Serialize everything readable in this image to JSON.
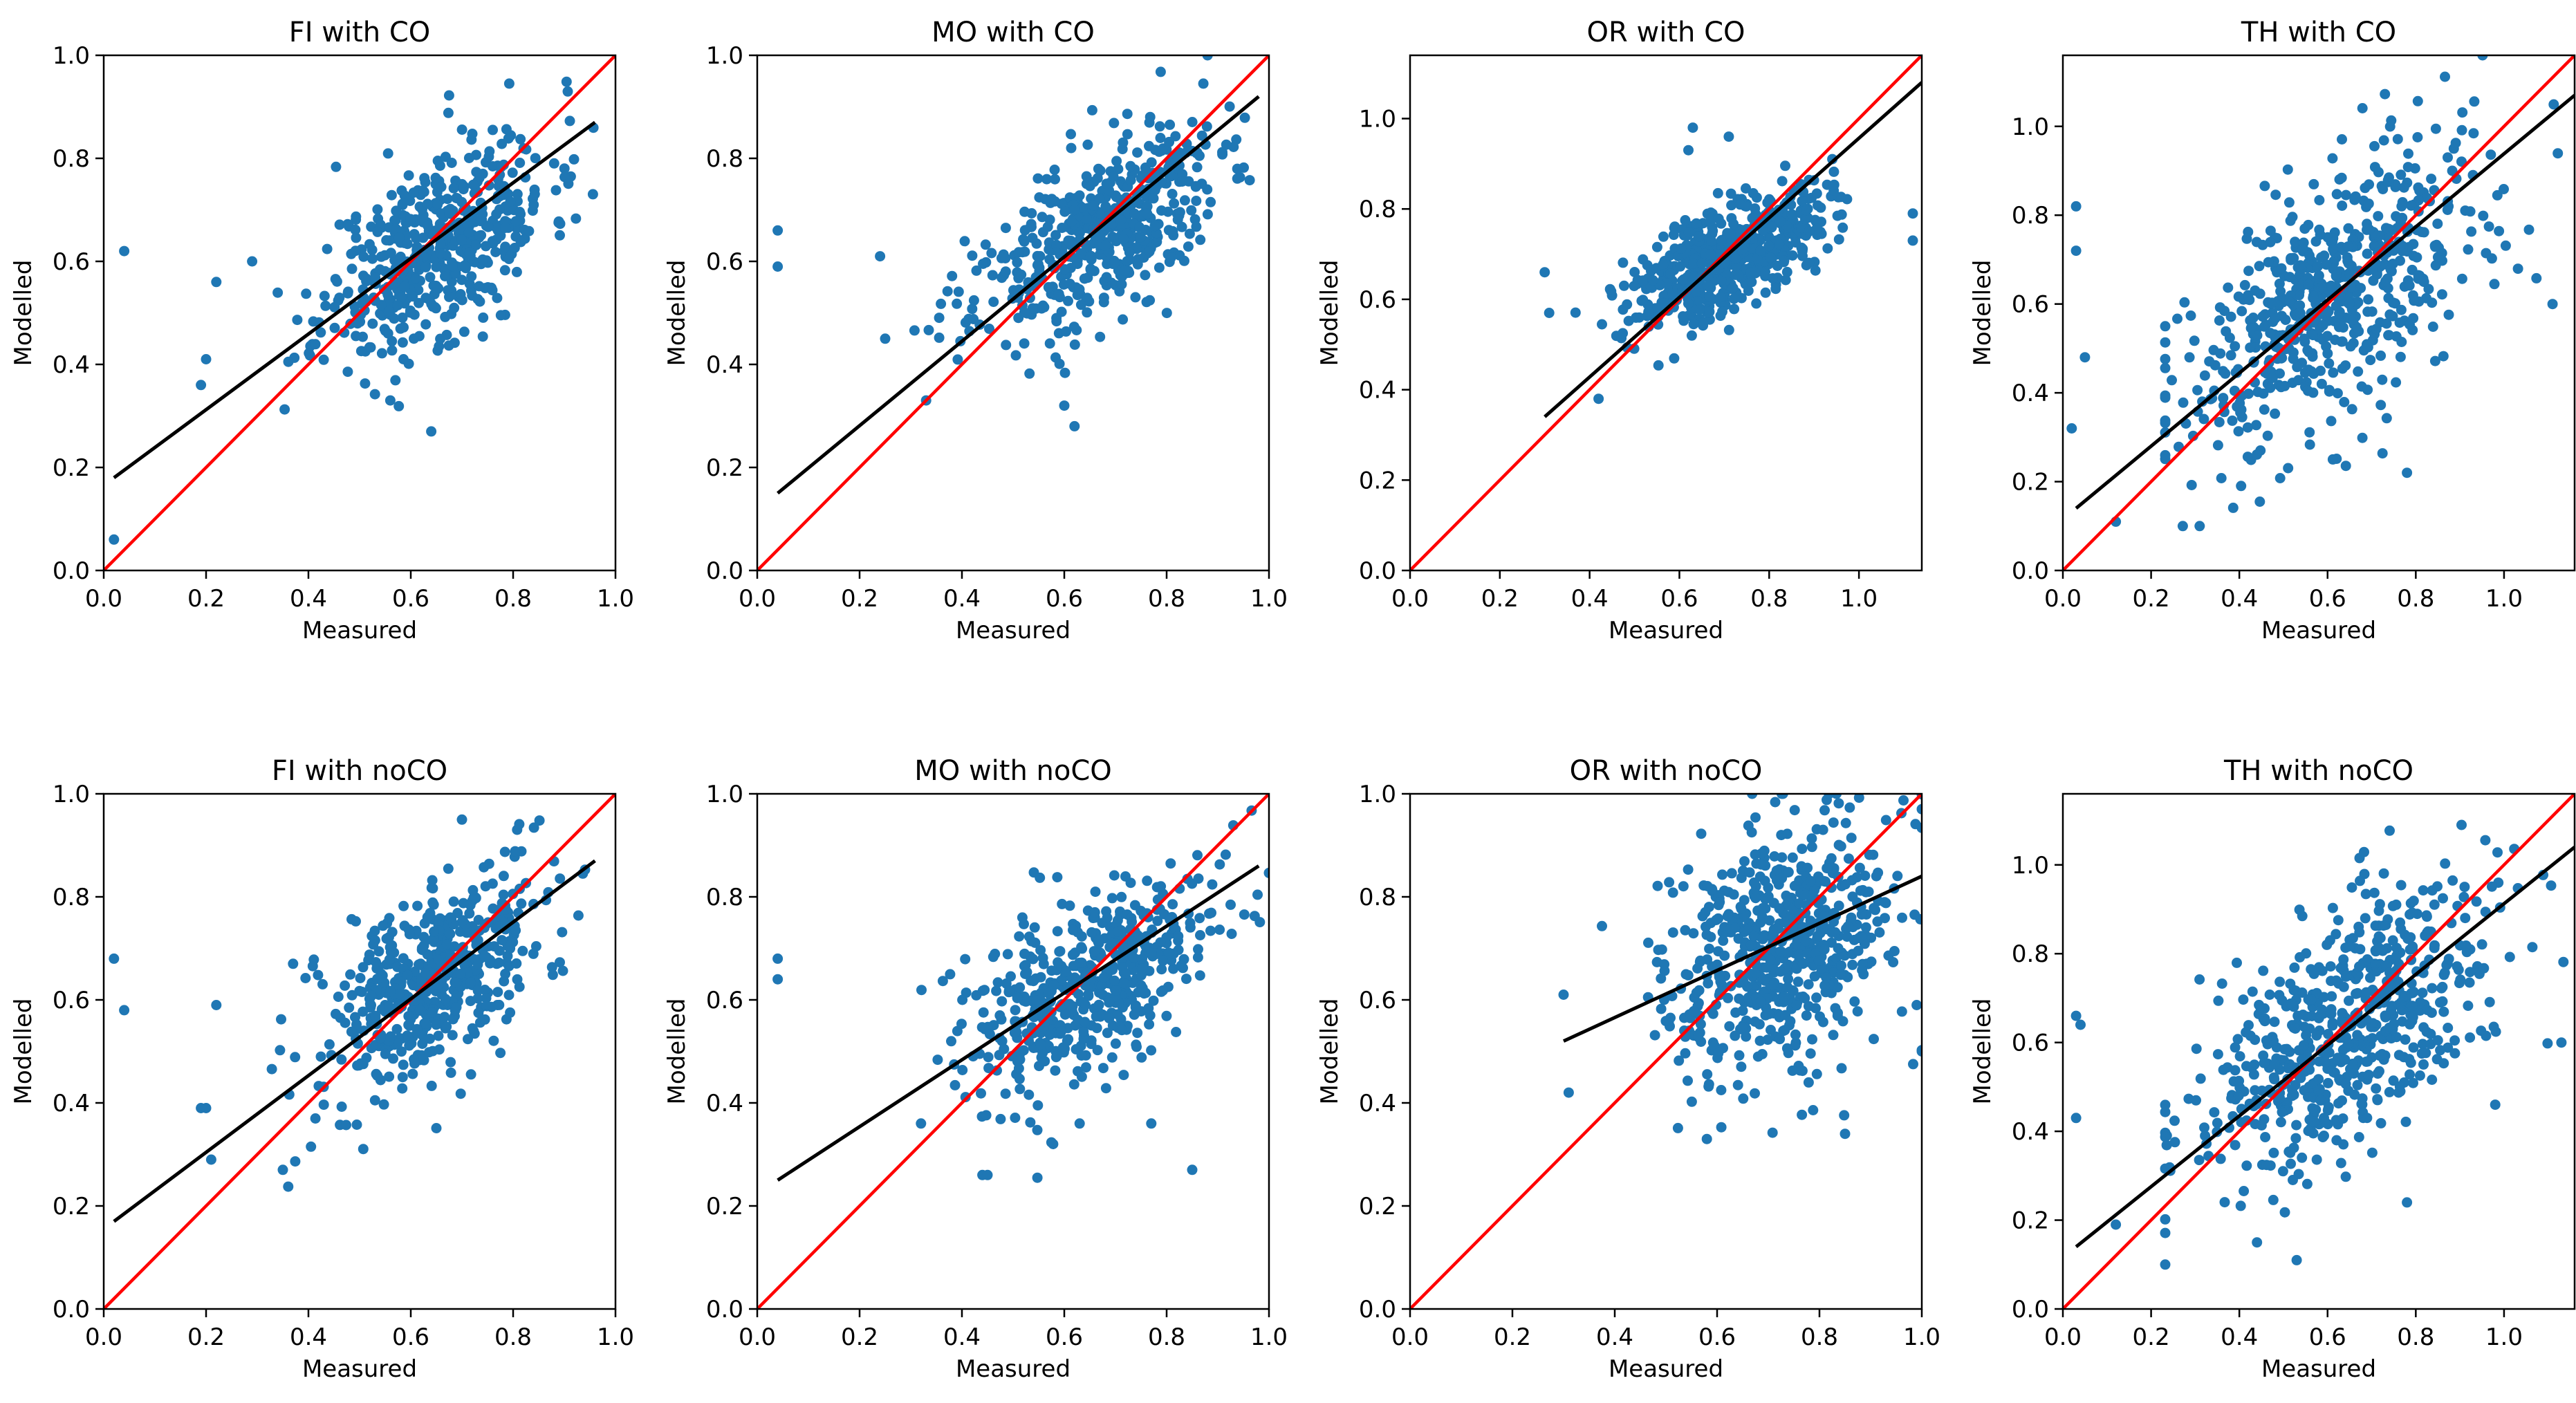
{
  "figure": {
    "description_colors": {
      "point": "#1f77b4",
      "fit_line": "#000000",
      "identity_line": "#ff0000",
      "axes": "#000000",
      "background": "#ffffff"
    }
  },
  "chart_data": [
    {
      "type": "scatter",
      "title": "FI with CO",
      "xlabel": "Measured",
      "ylabel": "Modelled",
      "xlim": [
        0,
        1.0
      ],
      "ylim": [
        0,
        1.0
      ],
      "xticks": [
        "0.0",
        "0.2",
        "0.4",
        "0.6",
        "0.8",
        "1.0"
      ],
      "yticks": [
        "0.0",
        "0.2",
        "0.4",
        "0.6",
        "0.8",
        "1.0"
      ],
      "fit_line": {
        "x": [
          0.02,
          0.96
        ],
        "y": [
          0.18,
          0.87
        ]
      },
      "identity_line": {
        "x": [
          0,
          1.0
        ],
        "y": [
          0,
          1.0
        ]
      },
      "cloud": {
        "center": [
          0.65,
          0.63
        ],
        "spread": [
          0.11,
          0.09
        ],
        "count": 520,
        "seed": 11,
        "slope": 0.55
      },
      "outliers": [
        [
          0.04,
          0.62
        ],
        [
          0.02,
          0.06
        ],
        [
          0.19,
          0.36
        ],
        [
          0.2,
          0.41
        ],
        [
          0.22,
          0.56
        ],
        [
          0.64,
          0.27
        ],
        [
          0.56,
          0.33
        ],
        [
          0.29,
          0.6
        ]
      ]
    },
    {
      "type": "scatter",
      "title": "MO with CO",
      "xlabel": "Measured",
      "ylabel": "Modelled",
      "xlim": [
        0,
        1.0
      ],
      "ylim": [
        0,
        1.0
      ],
      "xticks": [
        "0.0",
        "0.2",
        "0.4",
        "0.6",
        "0.8",
        "1.0"
      ],
      "yticks": [
        "0.0",
        "0.2",
        "0.4",
        "0.6",
        "0.8",
        "1.0"
      ],
      "fit_line": {
        "x": [
          0.04,
          0.98
        ],
        "y": [
          0.15,
          0.92
        ]
      },
      "identity_line": {
        "x": [
          0,
          1.0
        ],
        "y": [
          0,
          1.0
        ]
      },
      "cloud": {
        "center": [
          0.66,
          0.65
        ],
        "spread": [
          0.12,
          0.08
        ],
        "count": 520,
        "seed": 23,
        "slope": 0.5
      },
      "outliers": [
        [
          0.04,
          0.66
        ],
        [
          0.04,
          0.59
        ],
        [
          0.62,
          0.28
        ],
        [
          0.6,
          0.32
        ],
        [
          0.25,
          0.45
        ],
        [
          0.88,
          1.0
        ],
        [
          0.24,
          0.61
        ],
        [
          0.33,
          0.33
        ]
      ]
    },
    {
      "type": "scatter",
      "title": "OR with CO",
      "xlabel": "Measured",
      "ylabel": "Modelled",
      "xlim": [
        0,
        1.14
      ],
      "ylim": [
        0,
        1.14
      ],
      "xticks": [
        "0.0",
        "0.2",
        "0.4",
        "0.6",
        "0.8",
        "1.0"
      ],
      "yticks": [
        "0.0",
        "0.2",
        "0.4",
        "0.6",
        "0.8",
        "1.0"
      ],
      "fit_line": {
        "x": [
          0.3,
          1.14
        ],
        "y": [
          0.34,
          1.08
        ]
      },
      "identity_line": {
        "x": [
          0,
          1.14
        ],
        "y": [
          0,
          1.14
        ]
      },
      "cloud": {
        "center": [
          0.71,
          0.7
        ],
        "spread": [
          0.11,
          0.06
        ],
        "count": 540,
        "seed": 37,
        "slope": 0.45
      },
      "outliers": [
        [
          0.3,
          0.66
        ],
        [
          0.31,
          0.57
        ],
        [
          0.42,
          0.38
        ],
        [
          0.63,
          0.98
        ],
        [
          0.71,
          0.96
        ],
        [
          1.12,
          0.79
        ],
        [
          1.12,
          0.73
        ],
        [
          0.62,
          0.93
        ]
      ]
    },
    {
      "type": "scatter",
      "title": "TH with CO",
      "xlabel": "Measured",
      "ylabel": "Modelled",
      "xlim": [
        0,
        1.16
      ],
      "ylim": [
        0,
        1.16
      ],
      "xticks": [
        "0.0",
        "0.2",
        "0.4",
        "0.6",
        "0.8",
        "1.0"
      ],
      "yticks": [
        "0.0",
        "0.2",
        "0.4",
        "0.6",
        "0.8",
        "1.0"
      ],
      "fit_line": {
        "x": [
          0.03,
          1.16
        ],
        "y": [
          0.14,
          1.07
        ]
      },
      "identity_line": {
        "x": [
          0,
          1.16
        ],
        "y": [
          0,
          1.16
        ]
      },
      "cloud": {
        "center": [
          0.62,
          0.62
        ],
        "spread": [
          0.18,
          0.14
        ],
        "count": 620,
        "seed": 53,
        "slope": 0.62
      },
      "outliers": [
        [
          0.03,
          0.82
        ],
        [
          0.03,
          0.72
        ],
        [
          0.02,
          0.32
        ],
        [
          0.05,
          0.48
        ],
        [
          1.11,
          0.6
        ],
        [
          0.78,
          0.22
        ],
        [
          0.31,
          0.1
        ],
        [
          0.12,
          0.11
        ]
      ]
    },
    {
      "type": "scatter",
      "title": "FI with noCO",
      "xlabel": "Measured",
      "ylabel": "Modelled",
      "xlim": [
        0,
        1.0
      ],
      "ylim": [
        0,
        1.0
      ],
      "xticks": [
        "0.0",
        "0.2",
        "0.4",
        "0.6",
        "0.8",
        "1.0"
      ],
      "yticks": [
        "0.0",
        "0.2",
        "0.4",
        "0.6",
        "0.8",
        "1.0"
      ],
      "fit_line": {
        "x": [
          0.02,
          0.96
        ],
        "y": [
          0.17,
          0.87
        ]
      },
      "identity_line": {
        "x": [
          0,
          1.0
        ],
        "y": [
          0,
          1.0
        ]
      },
      "cloud": {
        "center": [
          0.64,
          0.63
        ],
        "spread": [
          0.11,
          0.09
        ],
        "count": 520,
        "seed": 71,
        "slope": 0.55
      },
      "outliers": [
        [
          0.02,
          0.68
        ],
        [
          0.04,
          0.58
        ],
        [
          0.19,
          0.39
        ],
        [
          0.2,
          0.39
        ],
        [
          0.21,
          0.29
        ],
        [
          0.35,
          0.27
        ],
        [
          0.7,
          0.95
        ],
        [
          0.22,
          0.59
        ]
      ]
    },
    {
      "type": "scatter",
      "title": "MO with noCO",
      "xlabel": "Measured",
      "ylabel": "Modelled",
      "xlim": [
        0,
        1.0
      ],
      "ylim": [
        0,
        1.0
      ],
      "xticks": [
        "0.0",
        "0.2",
        "0.4",
        "0.6",
        "0.8",
        "1.0"
      ],
      "yticks": [
        "0.0",
        "0.2",
        "0.4",
        "0.6",
        "0.8",
        "1.0"
      ],
      "fit_line": {
        "x": [
          0.04,
          0.98
        ],
        "y": [
          0.25,
          0.86
        ]
      },
      "identity_line": {
        "x": [
          0,
          1.0
        ],
        "y": [
          0,
          1.0
        ]
      },
      "cloud": {
        "center": [
          0.65,
          0.63
        ],
        "spread": [
          0.12,
          0.09
        ],
        "count": 520,
        "seed": 89,
        "slope": 0.5
      },
      "outliers": [
        [
          0.04,
          0.68
        ],
        [
          0.04,
          0.64
        ],
        [
          0.44,
          0.26
        ],
        [
          0.45,
          0.26
        ],
        [
          0.32,
          0.36
        ],
        [
          0.85,
          0.27
        ],
        [
          0.77,
          0.36
        ],
        [
          0.63,
          0.36
        ]
      ]
    },
    {
      "type": "scatter",
      "title": "OR with noCO",
      "xlabel": "Measured",
      "ylabel": "Modelled",
      "xlim": [
        0,
        1.0
      ],
      "ylim": [
        0,
        1.0
      ],
      "xticks": [
        "0.0",
        "0.2",
        "0.4",
        "0.6",
        "0.8",
        "1.0"
      ],
      "yticks": [
        "0.0",
        "0.2",
        "0.4",
        "0.6",
        "0.8",
        "1.0"
      ],
      "fit_line": {
        "x": [
          0.3,
          1.0
        ],
        "y": [
          0.52,
          0.84
        ]
      },
      "identity_line": {
        "x": [
          0,
          1.0
        ],
        "y": [
          0,
          1.0
        ]
      },
      "cloud": {
        "center": [
          0.72,
          0.7
        ],
        "spread": [
          0.12,
          0.12
        ],
        "count": 600,
        "seed": 97,
        "slope": 0.3
      },
      "outliers": [
        [
          0.3,
          0.61
        ],
        [
          0.31,
          0.42
        ],
        [
          0.58,
          0.33
        ],
        [
          0.85,
          0.34
        ],
        [
          1.0,
          0.5
        ],
        [
          0.99,
          0.59
        ]
      ]
    },
    {
      "type": "scatter",
      "title": "TH with noCO",
      "xlabel": "Measured",
      "ylabel": "Modelled",
      "xlim": [
        0,
        1.16
      ],
      "ylim": [
        0,
        1.16
      ],
      "xticks": [
        "0.0",
        "0.2",
        "0.4",
        "0.6",
        "0.8",
        "1.0"
      ],
      "yticks": [
        "0.0",
        "0.2",
        "0.4",
        "0.6",
        "0.8",
        "1.0"
      ],
      "fit_line": {
        "x": [
          0.03,
          1.16
        ],
        "y": [
          0.14,
          1.04
        ]
      },
      "identity_line": {
        "x": [
          0,
          1.16
        ],
        "y": [
          0,
          1.16
        ]
      },
      "cloud": {
        "center": [
          0.63,
          0.63
        ],
        "spread": [
          0.17,
          0.13
        ],
        "count": 620,
        "seed": 131,
        "slope": 0.6
      },
      "outliers": [
        [
          0.03,
          0.66
        ],
        [
          0.04,
          0.64
        ],
        [
          0.03,
          0.43
        ],
        [
          0.12,
          0.19
        ],
        [
          0.53,
          0.11
        ],
        [
          0.44,
          0.15
        ],
        [
          1.13,
          0.6
        ],
        [
          0.98,
          0.46
        ],
        [
          0.78,
          0.24
        ]
      ]
    }
  ]
}
